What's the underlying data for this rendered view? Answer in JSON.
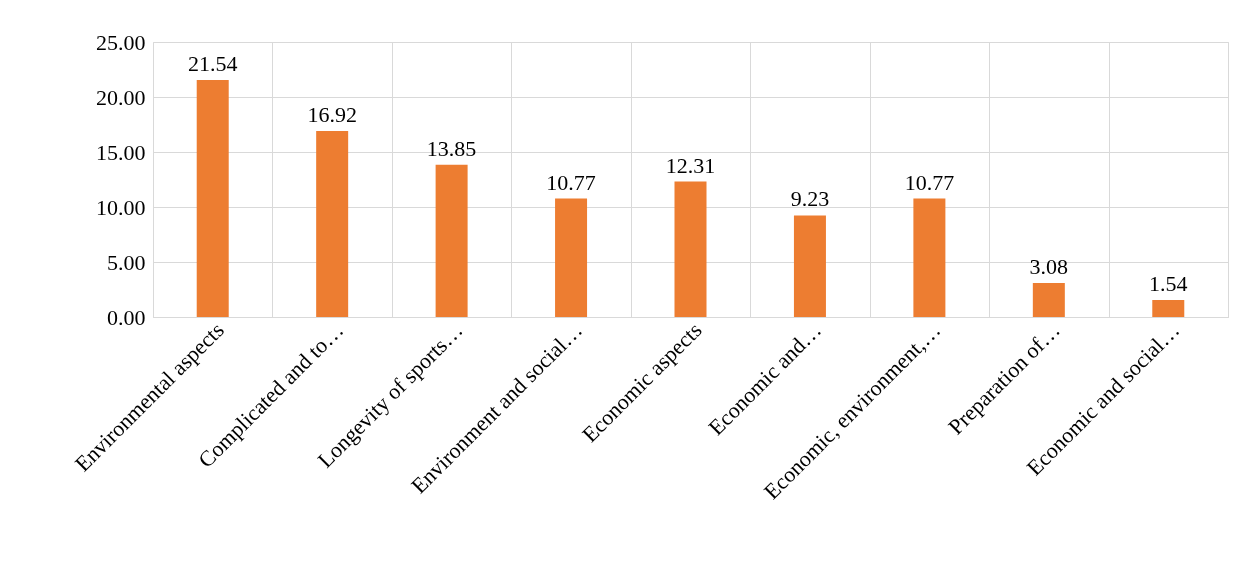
{
  "chart_data": {
    "type": "bar",
    "categories": [
      "Environmental aspects",
      "Complicated and to…",
      "Longevity of sports…",
      "Environment and social…",
      "Economic aspects",
      "Economic and…",
      "Economic, environment,…",
      "Preparation of…",
      "Economic and social…"
    ],
    "values": [
      21.54,
      16.92,
      13.85,
      10.77,
      12.31,
      9.23,
      10.77,
      3.08,
      1.54
    ],
    "color": "#ed7d31",
    "ylim": [
      0,
      25
    ],
    "yticks": [
      {
        "value": 0,
        "label": "0.00"
      },
      {
        "value": 5,
        "label": "5.00"
      },
      {
        "value": 10,
        "label": "10.00"
      },
      {
        "value": 15,
        "label": "15.00"
      },
      {
        "value": 20,
        "label": "20.00"
      },
      {
        "value": 25,
        "label": "25.00"
      }
    ],
    "grid": true,
    "data_labels": true
  }
}
